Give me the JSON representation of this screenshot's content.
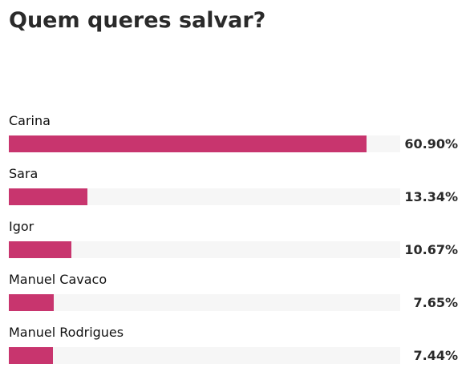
{
  "poll": {
    "title": "Quem queres salvar?"
  },
  "colors": {
    "bar_fill": "#c8356e",
    "bar_track": "#f6f6f6",
    "title_text": "#2a2a2a"
  },
  "chart_data": {
    "type": "bar",
    "orientation": "horizontal",
    "title": "Quem queres salvar?",
    "categories": [
      "Carina",
      "Sara",
      "Igor",
      "Manuel Cavaco",
      "Manuel Rodrigues"
    ],
    "values": [
      60.9,
      13.34,
      10.67,
      7.65,
      7.44
    ],
    "value_labels": [
      "60.90%",
      "13.34%",
      "10.67%",
      "7.65%",
      "7.44%"
    ],
    "xlim": [
      0,
      66.6
    ],
    "grid": false,
    "legend": "none"
  }
}
